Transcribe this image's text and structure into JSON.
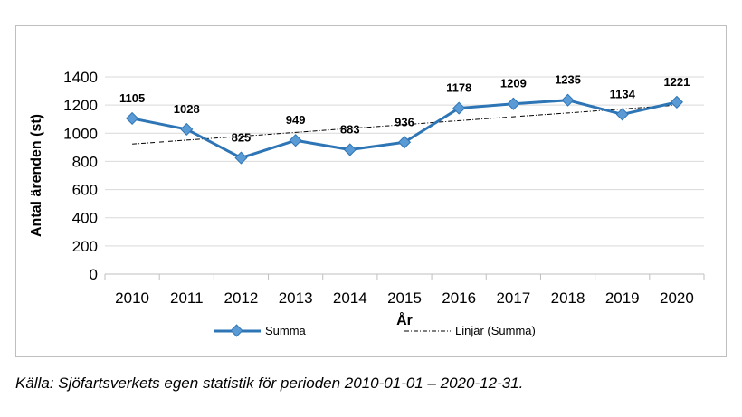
{
  "chart_data": {
    "type": "line",
    "title": "",
    "xlabel": "År",
    "ylabel": "Antal ärenden (st)",
    "ylim": [
      0,
      1400
    ],
    "yticks": [
      0,
      200,
      400,
      600,
      800,
      1000,
      1200,
      1400
    ],
    "categories": [
      "2010",
      "2011",
      "2012",
      "2013",
      "2014",
      "2015",
      "2016",
      "2017",
      "2018",
      "2019",
      "2020"
    ],
    "series": [
      {
        "name": "Summa",
        "values": [
          1105,
          1028,
          825,
          949,
          883,
          936,
          1178,
          1209,
          1235,
          1134,
          1221
        ],
        "color": "#2e75b6",
        "marker_color": "#5b9bd5",
        "data_labels": [
          "1105",
          "1028",
          "825",
          "949",
          "883",
          "936",
          "1178",
          "1209",
          "1235",
          "1134",
          "1221"
        ]
      },
      {
        "name": "Linjär (Summa)",
        "type": "trendline",
        "values": [
          923,
          951,
          978,
          1006,
          1034,
          1061,
          1089,
          1117,
          1144,
          1172,
          1200
        ],
        "color": "#000000",
        "style": "dash-dot"
      }
    ],
    "grid": "horizontal",
    "legend": "bottom"
  },
  "caption": "Källa: Sjöfartsverkets egen statistik för perioden 2010-01-01 – 2020-12-31."
}
